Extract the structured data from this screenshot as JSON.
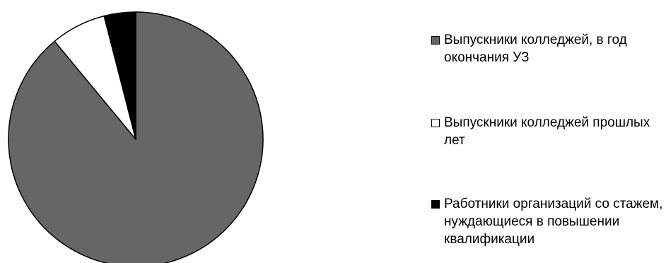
{
  "chart_data": {
    "type": "pie",
    "title": "",
    "start_angle_deg": 0,
    "direction": "clockwise",
    "series": [
      {
        "values": [
          89,
          7,
          4
        ],
        "categories": [
          "Выпускники колледжей, в год окончания УЗ",
          "Выпускники колледжей прошлых лет",
          "Работники организаций со стажем, нуждающиеся в повышении квалификации"
        ],
        "colors": [
          "#666666",
          "#ffffff",
          "#000000"
        ]
      }
    ],
    "legend": {
      "position": "right",
      "items": [
        {
          "label": "Выпускники колледжей, в год окончания УЗ",
          "color": "#666666"
        },
        {
          "label": "Выпускники колледжей прошлых лет",
          "color": "#ffffff"
        },
        {
          "label": "Работники организаций со стажем, нуждающиеся в повышении квалификации",
          "color": "#000000"
        }
      ]
    },
    "slice_outline_color": "#000000"
  }
}
